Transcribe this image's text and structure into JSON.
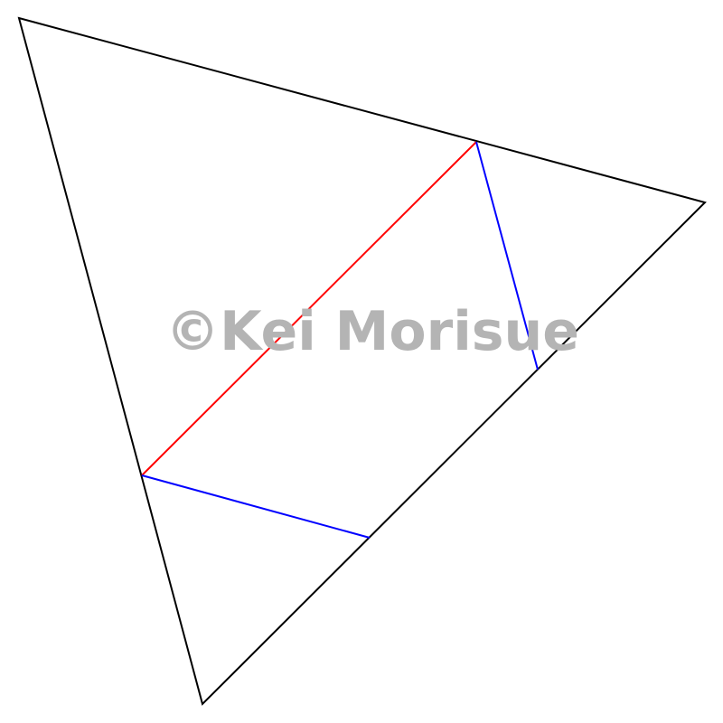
{
  "watermark": {
    "text": "©Kei Morisue",
    "color": "#b4b4b4"
  },
  "colors": {
    "outline": "#000000",
    "red_crease": "#ff0000",
    "blue_crease": "#0000ff"
  }
}
